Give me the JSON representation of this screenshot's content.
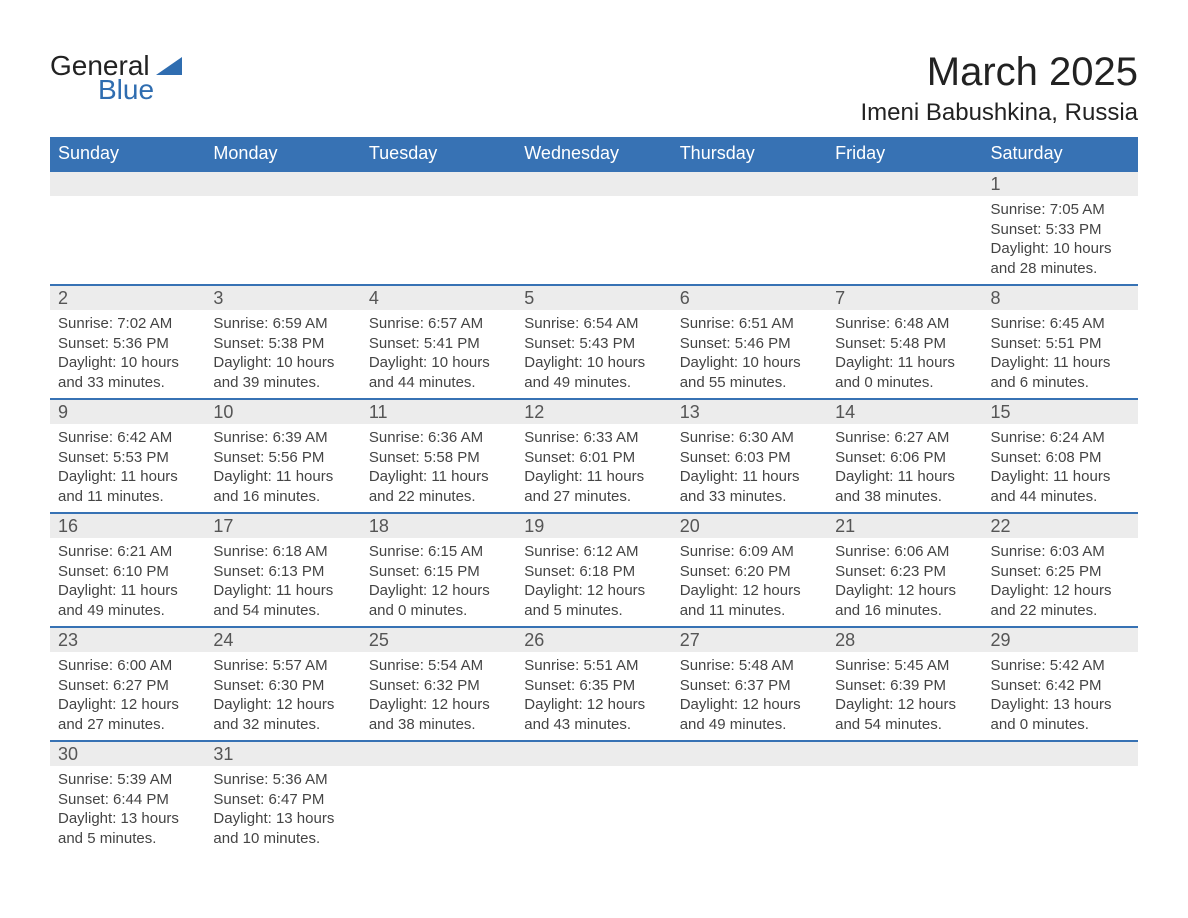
{
  "logo": {
    "text_general": "General",
    "text_blue": "Blue",
    "accent_color": "#2f6db0"
  },
  "title": {
    "month": "March 2025",
    "location": "Imeni Babushkina, Russia"
  },
  "calendar": {
    "header_bg": "#3772b4",
    "header_fg": "#ffffff",
    "row_border_color": "#3772b4",
    "daynum_bg": "#ececec",
    "day_headers": [
      "Sunday",
      "Monday",
      "Tuesday",
      "Wednesday",
      "Thursday",
      "Friday",
      "Saturday"
    ],
    "first_weekday_index": 6,
    "days": [
      {
        "n": 1,
        "sunrise": "7:05 AM",
        "sunset": "5:33 PM",
        "dl_h": 10,
        "dl_m": 28
      },
      {
        "n": 2,
        "sunrise": "7:02 AM",
        "sunset": "5:36 PM",
        "dl_h": 10,
        "dl_m": 33
      },
      {
        "n": 3,
        "sunrise": "6:59 AM",
        "sunset": "5:38 PM",
        "dl_h": 10,
        "dl_m": 39
      },
      {
        "n": 4,
        "sunrise": "6:57 AM",
        "sunset": "5:41 PM",
        "dl_h": 10,
        "dl_m": 44
      },
      {
        "n": 5,
        "sunrise": "6:54 AM",
        "sunset": "5:43 PM",
        "dl_h": 10,
        "dl_m": 49
      },
      {
        "n": 6,
        "sunrise": "6:51 AM",
        "sunset": "5:46 PM",
        "dl_h": 10,
        "dl_m": 55
      },
      {
        "n": 7,
        "sunrise": "6:48 AM",
        "sunset": "5:48 PM",
        "dl_h": 11,
        "dl_m": 0
      },
      {
        "n": 8,
        "sunrise": "6:45 AM",
        "sunset": "5:51 PM",
        "dl_h": 11,
        "dl_m": 6
      },
      {
        "n": 9,
        "sunrise": "6:42 AM",
        "sunset": "5:53 PM",
        "dl_h": 11,
        "dl_m": 11
      },
      {
        "n": 10,
        "sunrise": "6:39 AM",
        "sunset": "5:56 PM",
        "dl_h": 11,
        "dl_m": 16
      },
      {
        "n": 11,
        "sunrise": "6:36 AM",
        "sunset": "5:58 PM",
        "dl_h": 11,
        "dl_m": 22
      },
      {
        "n": 12,
        "sunrise": "6:33 AM",
        "sunset": "6:01 PM",
        "dl_h": 11,
        "dl_m": 27
      },
      {
        "n": 13,
        "sunrise": "6:30 AM",
        "sunset": "6:03 PM",
        "dl_h": 11,
        "dl_m": 33
      },
      {
        "n": 14,
        "sunrise": "6:27 AM",
        "sunset": "6:06 PM",
        "dl_h": 11,
        "dl_m": 38
      },
      {
        "n": 15,
        "sunrise": "6:24 AM",
        "sunset": "6:08 PM",
        "dl_h": 11,
        "dl_m": 44
      },
      {
        "n": 16,
        "sunrise": "6:21 AM",
        "sunset": "6:10 PM",
        "dl_h": 11,
        "dl_m": 49
      },
      {
        "n": 17,
        "sunrise": "6:18 AM",
        "sunset": "6:13 PM",
        "dl_h": 11,
        "dl_m": 54
      },
      {
        "n": 18,
        "sunrise": "6:15 AM",
        "sunset": "6:15 PM",
        "dl_h": 12,
        "dl_m": 0
      },
      {
        "n": 19,
        "sunrise": "6:12 AM",
        "sunset": "6:18 PM",
        "dl_h": 12,
        "dl_m": 5
      },
      {
        "n": 20,
        "sunrise": "6:09 AM",
        "sunset": "6:20 PM",
        "dl_h": 12,
        "dl_m": 11
      },
      {
        "n": 21,
        "sunrise": "6:06 AM",
        "sunset": "6:23 PM",
        "dl_h": 12,
        "dl_m": 16
      },
      {
        "n": 22,
        "sunrise": "6:03 AM",
        "sunset": "6:25 PM",
        "dl_h": 12,
        "dl_m": 22
      },
      {
        "n": 23,
        "sunrise": "6:00 AM",
        "sunset": "6:27 PM",
        "dl_h": 12,
        "dl_m": 27
      },
      {
        "n": 24,
        "sunrise": "5:57 AM",
        "sunset": "6:30 PM",
        "dl_h": 12,
        "dl_m": 32
      },
      {
        "n": 25,
        "sunrise": "5:54 AM",
        "sunset": "6:32 PM",
        "dl_h": 12,
        "dl_m": 38
      },
      {
        "n": 26,
        "sunrise": "5:51 AM",
        "sunset": "6:35 PM",
        "dl_h": 12,
        "dl_m": 43
      },
      {
        "n": 27,
        "sunrise": "5:48 AM",
        "sunset": "6:37 PM",
        "dl_h": 12,
        "dl_m": 49
      },
      {
        "n": 28,
        "sunrise": "5:45 AM",
        "sunset": "6:39 PM",
        "dl_h": 12,
        "dl_m": 54
      },
      {
        "n": 29,
        "sunrise": "5:42 AM",
        "sunset": "6:42 PM",
        "dl_h": 13,
        "dl_m": 0
      },
      {
        "n": 30,
        "sunrise": "5:39 AM",
        "sunset": "6:44 PM",
        "dl_h": 13,
        "dl_m": 5
      },
      {
        "n": 31,
        "sunrise": "5:36 AM",
        "sunset": "6:47 PM",
        "dl_h": 13,
        "dl_m": 10
      }
    ],
    "labels": {
      "sunrise": "Sunrise:",
      "sunset": "Sunset:",
      "daylight": "Daylight:"
    }
  }
}
